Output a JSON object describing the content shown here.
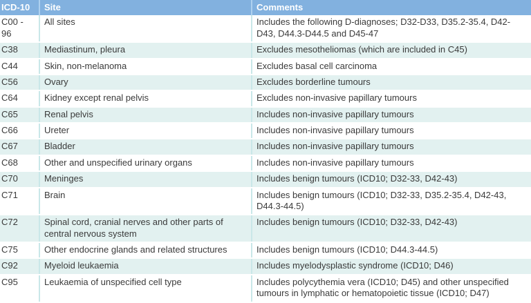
{
  "colors": {
    "header_bg": "#82b1df",
    "header_text": "#ffffff",
    "row_alt_bg": "#e2f1f0",
    "row_bg": "#ffffff",
    "body_divider": "#c9e7e8",
    "header_divider": "#aed0ef",
    "body_text": "#3a3a3a"
  },
  "table": {
    "columns": [
      {
        "key": "icd",
        "label": "ICD-10"
      },
      {
        "key": "site",
        "label": "Site"
      },
      {
        "key": "comments",
        "label": "Comments"
      }
    ],
    "rows": [
      {
        "icd": "C00 - 96",
        "site": "All sites",
        "comments": "Includes the following D-diagnoses; D32-D33, D35.2-35.4, D42-D43, D44.3-D44.5 and D45-47"
      },
      {
        "icd": "C38",
        "site": "Mediastinum, pleura",
        "comments": "Excludes mesotheliomas (which are included in C45)"
      },
      {
        "icd": "C44",
        "site": "Skin, non-melanoma",
        "comments": "Excludes basal cell carcinoma"
      },
      {
        "icd": "C56",
        "site": "Ovary",
        "comments": "Excludes borderline tumours"
      },
      {
        "icd": "C64",
        "site": "Kidney except renal pelvis",
        "comments": "Excludes non-invasive papillary tumours"
      },
      {
        "icd": "C65",
        "site": "Renal pelvis",
        "comments": "Includes non-invasive papillary tumours"
      },
      {
        "icd": "C66",
        "site": "Ureter",
        "comments": "Includes non-invasive papillary tumours"
      },
      {
        "icd": "C67",
        "site": "Bladder",
        "comments": "Includes non-invasive papillary tumours"
      },
      {
        "icd": "C68",
        "site": "Other and unspecified urinary organs",
        "comments": "Includes non-invasive papillary tumours"
      },
      {
        "icd": "C70",
        "site": "Meninges",
        "comments": "Includes benign tumours (ICD10; D32-33, D42-43)"
      },
      {
        "icd": "C71",
        "site": "Brain",
        "comments": "Includes benign tumours (ICD10; D32-33, D35.2-35.4, D42-43, D44.3-44.5)"
      },
      {
        "icd": "C72",
        "site": "Spinal cord, cranial nerves and other parts of central nervous system",
        "comments": "Includes benign tumours (ICD10; D32-33, D42-43)"
      },
      {
        "icd": "C75",
        "site": "Other endocrine glands and related structures",
        "comments": "Includes benign tumours (ICD10; D44.3-44.5)"
      },
      {
        "icd": "C92",
        "site": "Myeloid leukaemia",
        "comments": "Includes myelodysplastic syndrome (ICD10; D46)"
      },
      {
        "icd": "C95",
        "site": "Leukaemia of unspecified cell type",
        "comments": "Includes polycythemia vera (ICD10; D45) and other unspecified tumours in lymphatic or hematopoietic tissue (ICD10; D47)"
      }
    ]
  }
}
